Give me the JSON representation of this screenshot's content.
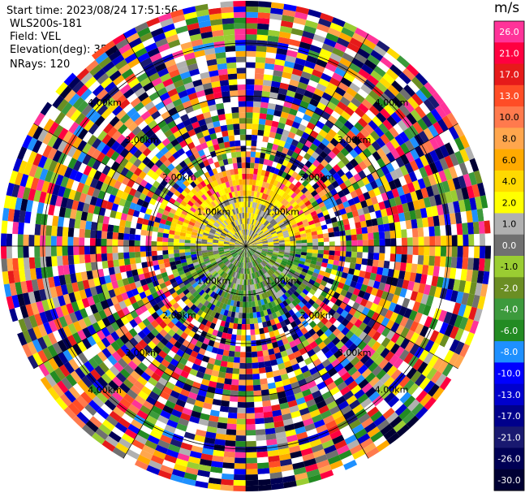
{
  "header": {
    "start_time": "Start time: 2023/08/24 17:51:56",
    "instrument": "WLS200s-181",
    "field": "Field: VEL",
    "elevation": "Elevation(deg): 35.30",
    "nrays": "NRays: 120"
  },
  "chart_data": {
    "type": "polar-ppi",
    "range_ring_labels": [
      "1.00km",
      "2.00km",
      "3.00km",
      "4.00km"
    ],
    "rays": 120,
    "colorbar": {
      "unit": "m/s",
      "ticks": [
        "26.0",
        "21.0",
        "17.0",
        "13.0",
        "10.0",
        "8.0",
        "6.0",
        "4.0",
        "2.0",
        "1.0",
        "0.0",
        "-1.0",
        "-2.0",
        "-4.0",
        "-6.0",
        "-8.0",
        "-10.0",
        "-13.0",
        "-17.0",
        "-21.0",
        "-26.0",
        "-30.0"
      ],
      "colors": [
        "#ff3399",
        "#ff0040",
        "#e61a1a",
        "#ff4d26",
        "#ff7a4d",
        "#ffa64d",
        "#ffaa00",
        "#ffd900",
        "#ffff00",
        "#b0b0b0",
        "#707070",
        "#9acd32",
        "#6b8e23",
        "#3c9a3c",
        "#228b22",
        "#1e90ff",
        "#0000ff",
        "#0000cd",
        "#00008b",
        "#191970",
        "#000055",
        "#000033"
      ]
    }
  }
}
